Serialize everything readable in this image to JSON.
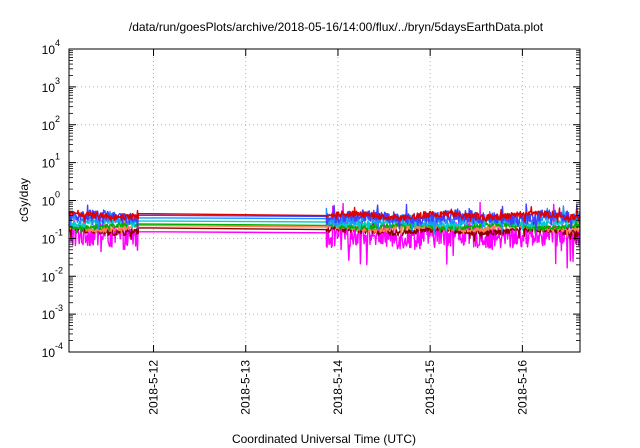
{
  "chart_data": {
    "type": "line",
    "title": "/data/run/goesPlots/archive/2018-05-16/14:00/flux/../bryn/5daysEarthData.plot",
    "xlabel": "Coordinated Universal Time (UTC)",
    "ylabel": "cGy/day",
    "yscale": "log",
    "ylim_exponents": [
      -4,
      4
    ],
    "y_tick_base": "10",
    "y_tick_exponents": [
      "-4",
      "-3",
      "-2",
      "-1",
      "0",
      "1",
      "2",
      "3",
      "4"
    ],
    "xlim_days": [
      "2018-05-11 02:00",
      "2018-05-16 15:00"
    ],
    "x_ticks": [
      {
        "day": "2018-05-12",
        "label": "2018-5-12"
      },
      {
        "day": "2018-05-13",
        "label": "2018-5-13"
      },
      {
        "day": "2018-05-14",
        "label": "2018-5-14"
      },
      {
        "day": "2018-05-15",
        "label": "2018-5-15"
      },
      {
        "day": "2018-05-16",
        "label": "2018-5-16"
      }
    ],
    "grid": true,
    "data_gap": [
      "2018-05-11 20:00",
      "2018-05-13 21:00"
    ],
    "series": [
      {
        "color": "#ff00ff",
        "base": 0.12,
        "spread": 0.55,
        "gap_start": 0.15,
        "gap_end": 0.14
      },
      {
        "color": "#8b0000",
        "base": 0.16,
        "spread": 0.15,
        "gap_start": 0.19,
        "gap_end": 0.17
      },
      {
        "color": "#ff7f50",
        "base": 0.19,
        "spread": 0.12,
        "gap_start": 0.22,
        "gap_end": 0.2
      },
      {
        "color": "#00b000",
        "base": 0.21,
        "spread": 0.1,
        "gap_start": 0.24,
        "gap_end": 0.22
      },
      {
        "color": "#00cfcf",
        "base": 0.26,
        "spread": 0.12,
        "gap_start": 0.29,
        "gap_end": 0.27
      },
      {
        "color": "#1e90ff",
        "base": 0.32,
        "spread": 0.22,
        "gap_start": 0.35,
        "gap_end": 0.33
      },
      {
        "color": "#4040ff",
        "base": 0.36,
        "spread": 0.25,
        "gap_start": 0.41,
        "gap_end": 0.38
      },
      {
        "color": "#e00000",
        "base": 0.4,
        "spread": 0.14,
        "gap_start": 0.45,
        "gap_end": 0.4
      }
    ]
  }
}
